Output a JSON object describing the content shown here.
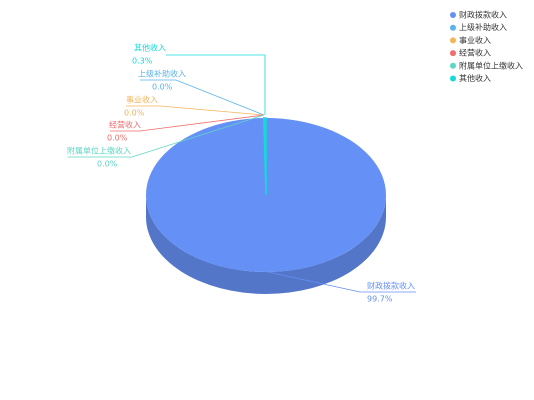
{
  "chart_data": {
    "type": "pie",
    "legend": "top-right",
    "categories": [
      "财政拨款收入",
      "上级补助收入",
      "事业收入",
      "经营收入",
      "附属单位上缴收入",
      "其他收入"
    ],
    "values": [
      99.7,
      0.0,
      0.0,
      0.0,
      0.0,
      0.3
    ],
    "value_labels": [
      "99.7%",
      "0.0%",
      "0.0%",
      "0.0%",
      "0.0%",
      "0.3%"
    ],
    "colors": [
      "#6590f5",
      "#5ab3ea",
      "#f5b35b",
      "#ef6e6e",
      "#5fd6c4",
      "#14dada"
    ]
  }
}
